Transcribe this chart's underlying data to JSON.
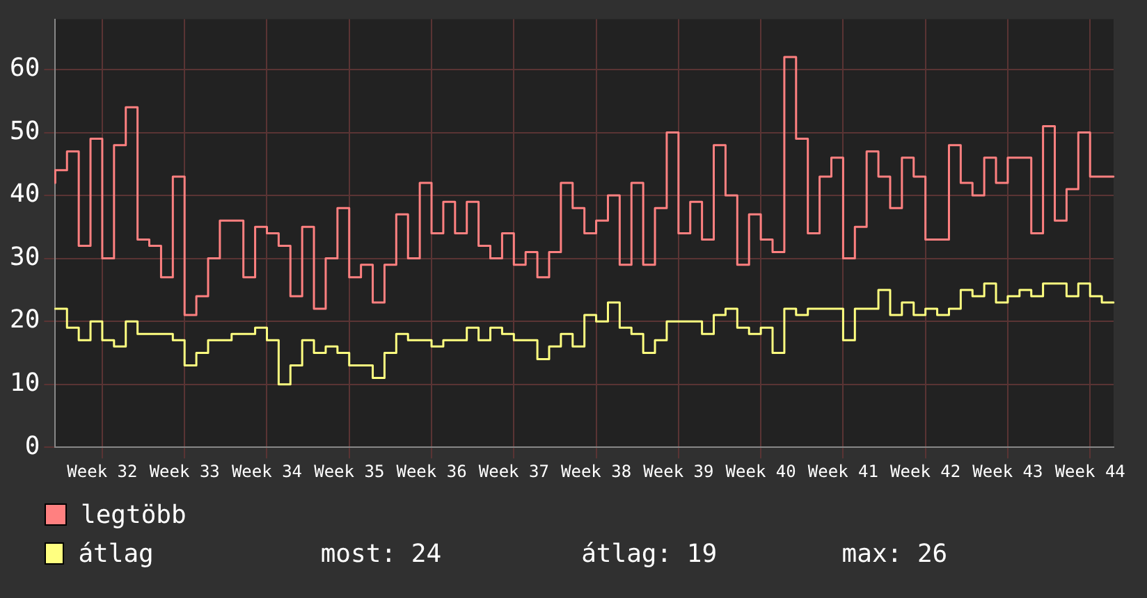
{
  "chart_data": {
    "type": "step",
    "categories": [
      null,
      null,
      null,
      null,
      "Week 32",
      null,
      null,
      null,
      null,
      null,
      null,
      "Week 33",
      null,
      null,
      null,
      null,
      null,
      null,
      "Week 34",
      null,
      null,
      null,
      null,
      null,
      null,
      "Week 35",
      null,
      null,
      null,
      null,
      null,
      null,
      "Week 36",
      null,
      null,
      null,
      null,
      null,
      null,
      "Week 37",
      null,
      null,
      null,
      null,
      null,
      null,
      "Week 38",
      null,
      null,
      null,
      null,
      null,
      null,
      "Week 39",
      null,
      null,
      null,
      null,
      null,
      null,
      "Week 40",
      null,
      null,
      null,
      null,
      null,
      null,
      "Week 41",
      null,
      null,
      null,
      null,
      null,
      null,
      "Week 42",
      null,
      null,
      null,
      null,
      null,
      null,
      "Week 43",
      null,
      null,
      null,
      null,
      null,
      null,
      "Week 44",
      null,
      null
    ],
    "series": [
      {
        "name": "legtöbb",
        "color": "#ff8080",
        "values": [
          42,
          44,
          47,
          32,
          49,
          30,
          48,
          54,
          33,
          32,
          27,
          43,
          21,
          24,
          30,
          36,
          36,
          27,
          35,
          34,
          32,
          24,
          35,
          22,
          30,
          38,
          27,
          29,
          23,
          29,
          37,
          30,
          42,
          34,
          39,
          34,
          39,
          32,
          30,
          34,
          29,
          31,
          27,
          31,
          42,
          38,
          34,
          36,
          40,
          29,
          42,
          29,
          38,
          50,
          34,
          39,
          33,
          48,
          40,
          29,
          37,
          33,
          31,
          62,
          49,
          34,
          43,
          46,
          30,
          35,
          47,
          43,
          38,
          46,
          43,
          33,
          33,
          48,
          42,
          40,
          46,
          42,
          46,
          46,
          34,
          51,
          36,
          41,
          50,
          43,
          43
        ]
      },
      {
        "name": "átlag",
        "color": "#ffff80",
        "values": [
          22,
          22,
          19,
          17,
          20,
          17,
          16,
          20,
          18,
          18,
          18,
          17,
          13,
          15,
          17,
          17,
          18,
          18,
          19,
          17,
          10,
          13,
          17,
          15,
          16,
          15,
          13,
          13,
          11,
          15,
          18,
          17,
          17,
          16,
          17,
          17,
          19,
          17,
          19,
          18,
          17,
          17,
          14,
          16,
          18,
          16,
          21,
          20,
          23,
          19,
          18,
          15,
          17,
          20,
          20,
          20,
          18,
          21,
          22,
          19,
          18,
          19,
          15,
          22,
          21,
          22,
          22,
          22,
          17,
          22,
          22,
          25,
          21,
          23,
          21,
          22,
          21,
          22,
          25,
          24,
          26,
          23,
          24,
          25,
          24,
          26,
          26,
          24,
          26,
          24,
          23
        ]
      }
    ],
    "ylim": [
      0,
      68
    ],
    "yticks": [
      0,
      10,
      20,
      30,
      40,
      50,
      60
    ],
    "grid": true,
    "legend": "bottom",
    "annotations": [
      "most: 24",
      "átlag: 19",
      "max: 26"
    ]
  }
}
